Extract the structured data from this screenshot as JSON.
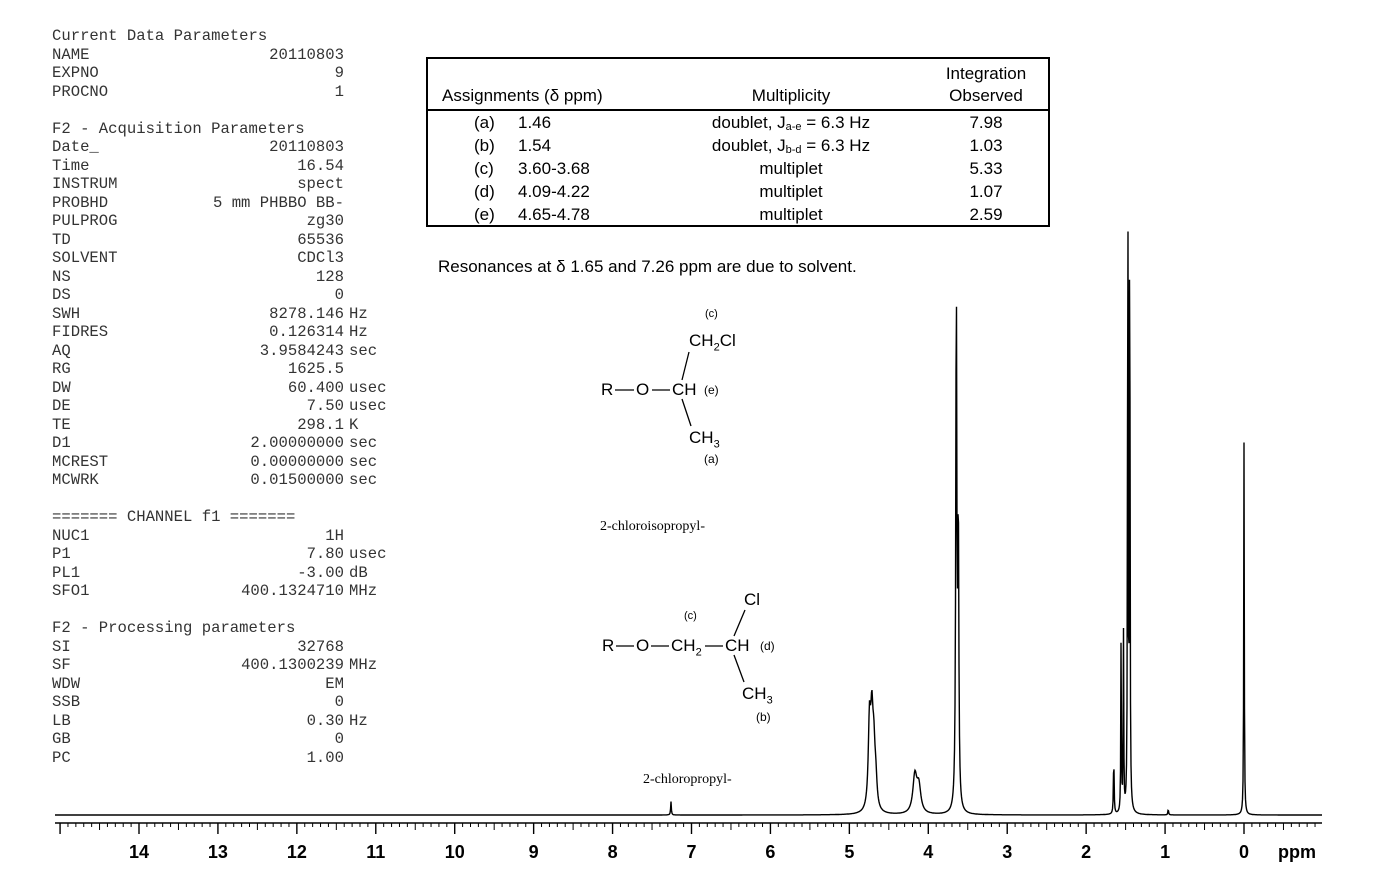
{
  "params": [
    {
      "type": "title",
      "text": "Current Data Parameters"
    },
    {
      "k": "NAME",
      "v": "20110803",
      "u": ""
    },
    {
      "k": "EXPNO",
      "v": "9",
      "u": ""
    },
    {
      "k": "PROCNO",
      "v": "1",
      "u": ""
    },
    {
      "type": "gap"
    },
    {
      "type": "title",
      "text": "F2 - Acquisition Parameters"
    },
    {
      "k": "Date_",
      "v": "20110803",
      "u": ""
    },
    {
      "k": "Time",
      "v": "16.54",
      "u": ""
    },
    {
      "k": "INSTRUM",
      "v": "spect",
      "u": ""
    },
    {
      "k": "PROBHD",
      "v": "5 mm PHBBO BB-",
      "u": ""
    },
    {
      "k": "PULPROG",
      "v": "zg30",
      "u": ""
    },
    {
      "k": "TD",
      "v": "65536",
      "u": ""
    },
    {
      "k": "SOLVENT",
      "v": "CDCl3",
      "u": ""
    },
    {
      "k": "NS",
      "v": "128",
      "u": ""
    },
    {
      "k": "DS",
      "v": "0",
      "u": ""
    },
    {
      "k": "SWH",
      "v": "8278.146",
      "u": "Hz"
    },
    {
      "k": "FIDRES",
      "v": "0.126314",
      "u": "Hz"
    },
    {
      "k": "AQ",
      "v": "3.9584243",
      "u": "sec"
    },
    {
      "k": "RG",
      "v": "1625.5",
      "u": ""
    },
    {
      "k": "DW",
      "v": "60.400",
      "u": "usec"
    },
    {
      "k": "DE",
      "v": "7.50",
      "u": "usec"
    },
    {
      "k": "TE",
      "v": "298.1",
      "u": "K"
    },
    {
      "k": "D1",
      "v": "2.00000000",
      "u": "sec"
    },
    {
      "k": "MCREST",
      "v": "0.00000000",
      "u": "sec"
    },
    {
      "k": "MCWRK",
      "v": "0.01500000",
      "u": "sec"
    },
    {
      "type": "gap"
    },
    {
      "type": "title",
      "text": "======= CHANNEL f1 ======="
    },
    {
      "k": "NUC1",
      "v": "1H",
      "u": ""
    },
    {
      "k": "P1",
      "v": "7.80",
      "u": "usec"
    },
    {
      "k": "PL1",
      "v": "-3.00",
      "u": "dB"
    },
    {
      "k": "SFO1",
      "v": "400.1324710",
      "u": "MHz"
    },
    {
      "type": "gap"
    },
    {
      "type": "title",
      "text": "F2 - Processing parameters"
    },
    {
      "k": "SI",
      "v": "32768",
      "u": ""
    },
    {
      "k": "SF",
      "v": "400.1300239",
      "u": "MHz"
    },
    {
      "k": "WDW",
      "v": "EM",
      "u": ""
    },
    {
      "k": "SSB",
      "v": "0",
      "u": ""
    },
    {
      "k": "LB",
      "v": "0.30",
      "u": "Hz"
    },
    {
      "k": "GB",
      "v": "0",
      "u": ""
    },
    {
      "k": "PC",
      "v": "1.00",
      "u": ""
    }
  ],
  "table": {
    "headers": {
      "assignments": "Assignments (δ ppm)",
      "multiplicity": "Multiplicity",
      "integration_l1": "Integration",
      "integration_l2": "Observed"
    },
    "rows": [
      {
        "label": "(a)",
        "ppm": "1.46",
        "mult": "doublet, J",
        "sub": "a-e",
        "mult_tail": " = 6.3 Hz",
        "integ": "7.98"
      },
      {
        "label": "(b)",
        "ppm": "1.54",
        "mult": "doublet, J",
        "sub": "b-d",
        "mult_tail": " = 6.3 Hz",
        "integ": "1.03"
      },
      {
        "label": "(c)",
        "ppm": "3.60-3.68",
        "mult": "multiplet",
        "sub": "",
        "mult_tail": "",
        "integ": "5.33"
      },
      {
        "label": "(d)",
        "ppm": "4.09-4.22",
        "mult": "multiplet",
        "sub": "",
        "mult_tail": "",
        "integ": "1.07"
      },
      {
        "label": "(e)",
        "ppm": "4.65-4.78",
        "mult": "multiplet",
        "sub": "",
        "mult_tail": "",
        "integ": "2.59"
      }
    ]
  },
  "note": "Resonances at δ 1.65 and 7.26 ppm are due to solvent.",
  "structures": {
    "s1": {
      "label_c": "(c)",
      "ch2cl": "CH",
      "ch2cl_sub": "2",
      "ch2cl_tail": "Cl",
      "r": "R",
      "o": "O",
      "ch": "CH",
      "label_e": "(e)",
      "ch3": "CH",
      "ch3_sub": "3",
      "label_a": "(a)",
      "name": "2-chloroisopropyl-"
    },
    "s2": {
      "cl": "Cl",
      "label_c": "(c)",
      "r": "R",
      "o": "O",
      "ch2": "CH",
      "ch2_sub": "2",
      "ch": "CH",
      "label_d": "(d)",
      "ch3": "CH",
      "ch3_sub": "3",
      "label_b": "(b)",
      "name": "2-chloropropyl-"
    }
  },
  "chart_data": {
    "type": "line",
    "title": "",
    "xlabel": "ppm",
    "ylabel": "",
    "xlim": [
      14.8,
      -0.8
    ],
    "x_reversed": true,
    "xticks": [
      14,
      13,
      12,
      11,
      10,
      9,
      8,
      7,
      6,
      5,
      4,
      3,
      2,
      1,
      0
    ],
    "ylim": [
      0,
      100
    ],
    "grid": false,
    "peaks": [
      {
        "ppm": 7.26,
        "height": 1.8,
        "width": 0.005,
        "note": "solvent"
      },
      {
        "ppm": 4.745,
        "height": 11.5,
        "width": 0.018
      },
      {
        "ppm": 4.715,
        "height": 11.0,
        "width": 0.018
      },
      {
        "ppm": 4.69,
        "height": 7.0,
        "width": 0.018
      },
      {
        "ppm": 4.665,
        "height": 3.5,
        "width": 0.018
      },
      {
        "ppm": 4.17,
        "height": 5.0,
        "width": 0.03
      },
      {
        "ppm": 4.12,
        "height": 3.5,
        "width": 0.03
      },
      {
        "ppm": 3.645,
        "height": 70.0,
        "width": 0.008
      },
      {
        "ppm": 3.62,
        "height": 38.0,
        "width": 0.008
      },
      {
        "ppm": 1.65,
        "height": 8.0,
        "width": 0.005,
        "note": "solvent"
      },
      {
        "ppm": 1.557,
        "height": 25.0,
        "width": 0.004
      },
      {
        "ppm": 1.527,
        "height": 24.0,
        "width": 0.004
      },
      {
        "ppm": 1.472,
        "height": 100.0,
        "width": 0.004
      },
      {
        "ppm": 1.448,
        "height": 99.0,
        "width": 0.004
      },
      {
        "ppm": 0.96,
        "height": 0.8,
        "width": 0.005
      },
      {
        "ppm": 0.0,
        "height": 50.0,
        "width": 0.004
      }
    ]
  }
}
